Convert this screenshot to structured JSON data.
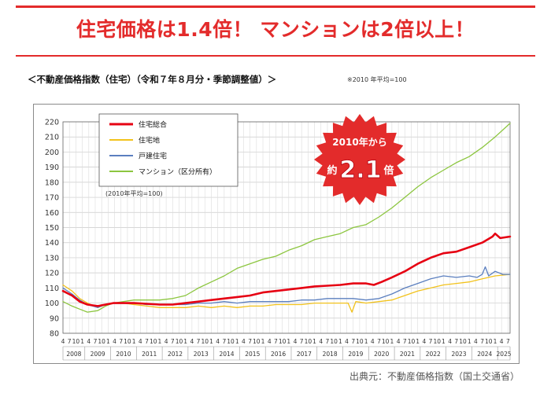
{
  "headline": "住宅価格は1.4倍！ マンションは2倍以上！",
  "subtitle": "＜不動産価格指数（住宅）（令和７年８月分・季節調整値）＞",
  "subnote": "※2010 年平均=100",
  "source": "出典元：不動産価格指数（国土交通省）",
  "badge": {
    "line1": "2010年から",
    "prefix": "約",
    "value": "2.1",
    "suffix": "倍",
    "color": "#e32b2b"
  },
  "colors": {
    "accent": "#e32b2b",
    "total": "#e60012",
    "land": "#f2c21b",
    "detached": "#5b7fbf",
    "condo": "#8cc63f"
  },
  "chart_data": {
    "type": "line",
    "title": "不動産価格指数（住宅）（令和７年８月分・季節調整値）",
    "xlabel": "",
    "ylabel": "",
    "base_note": "(2010年平均=100)",
    "ylim": [
      80,
      220
    ],
    "yticks": [
      80,
      90,
      100,
      110,
      120,
      130,
      140,
      150,
      160,
      170,
      180,
      190,
      200,
      210,
      220
    ],
    "years": [
      "2008",
      "2009",
      "2010",
      "2011",
      "2012",
      "2013",
      "2014",
      "2015",
      "2016",
      "2017",
      "2018",
      "2019",
      "2020",
      "2021",
      "2022",
      "2023",
      "2024",
      "2025"
    ],
    "month_ticks": [
      "4",
      "7",
      "10",
      "1"
    ],
    "last_year_month_ticks": [
      "4",
      "7"
    ],
    "x_start": 2008.25,
    "x_end": 2025.58,
    "legend": [
      "住宅総合",
      "住宅地",
      "戸建住宅",
      "マンション（区分所有）"
    ],
    "series": [
      {
        "name": "住宅総合",
        "key": "total",
        "points": [
          [
            2008.25,
            108
          ],
          [
            2008.6,
            105
          ],
          [
            2008.9,
            101
          ],
          [
            2009.2,
            99
          ],
          [
            2009.6,
            98
          ],
          [
            2009.9,
            99
          ],
          [
            2010.2,
            100
          ],
          [
            2010.6,
            100
          ],
          [
            2011.0,
            100
          ],
          [
            2011.5,
            99.5
          ],
          [
            2012.0,
            99
          ],
          [
            2012.5,
            99
          ],
          [
            2013.0,
            100
          ],
          [
            2013.5,
            101
          ],
          [
            2014.0,
            102
          ],
          [
            2014.5,
            103
          ],
          [
            2015.0,
            104
          ],
          [
            2015.5,
            105
          ],
          [
            2016.0,
            107
          ],
          [
            2016.5,
            108
          ],
          [
            2017.0,
            109
          ],
          [
            2017.5,
            110
          ],
          [
            2018.0,
            111
          ],
          [
            2018.5,
            111.5
          ],
          [
            2019.0,
            112
          ],
          [
            2019.5,
            113
          ],
          [
            2020.0,
            113
          ],
          [
            2020.3,
            112
          ],
          [
            2020.6,
            114
          ],
          [
            2021.0,
            117
          ],
          [
            2021.5,
            121
          ],
          [
            2022.0,
            126
          ],
          [
            2022.5,
            130
          ],
          [
            2023.0,
            133
          ],
          [
            2023.5,
            134
          ],
          [
            2024.0,
            137
          ],
          [
            2024.5,
            140
          ],
          [
            2024.9,
            144
          ],
          [
            2025.0,
            146
          ],
          [
            2025.2,
            143
          ],
          [
            2025.58,
            144
          ]
        ]
      },
      {
        "name": "住宅地",
        "key": "land",
        "points": [
          [
            2008.25,
            112
          ],
          [
            2008.6,
            108
          ],
          [
            2008.9,
            103
          ],
          [
            2009.2,
            100
          ],
          [
            2009.6,
            97
          ],
          [
            2009.9,
            99
          ],
          [
            2010.2,
            100
          ],
          [
            2010.6,
            100
          ],
          [
            2011.0,
            99
          ],
          [
            2011.5,
            98
          ],
          [
            2012.0,
            97
          ],
          [
            2012.5,
            97
          ],
          [
            2013.0,
            97
          ],
          [
            2013.5,
            98
          ],
          [
            2014.0,
            97
          ],
          [
            2014.5,
            98
          ],
          [
            2015.0,
            97
          ],
          [
            2015.5,
            98
          ],
          [
            2016.0,
            98
          ],
          [
            2016.5,
            99
          ],
          [
            2017.0,
            99
          ],
          [
            2017.5,
            99
          ],
          [
            2018.0,
            100
          ],
          [
            2018.5,
            100
          ],
          [
            2019.0,
            100
          ],
          [
            2019.3,
            100
          ],
          [
            2019.45,
            94
          ],
          [
            2019.6,
            101
          ],
          [
            2020.0,
            100
          ],
          [
            2020.5,
            101
          ],
          [
            2021.0,
            102
          ],
          [
            2021.5,
            105
          ],
          [
            2022.0,
            108
          ],
          [
            2022.5,
            110
          ],
          [
            2023.0,
            112
          ],
          [
            2023.5,
            113
          ],
          [
            2024.0,
            114
          ],
          [
            2024.5,
            116
          ],
          [
            2025.0,
            118
          ],
          [
            2025.58,
            119
          ]
        ]
      },
      {
        "name": "戸建住宅",
        "key": "detached",
        "points": [
          [
            2008.25,
            110
          ],
          [
            2008.6,
            106
          ],
          [
            2008.9,
            102
          ],
          [
            2009.2,
            99
          ],
          [
            2009.6,
            97
          ],
          [
            2009.9,
            99
          ],
          [
            2010.2,
            100
          ],
          [
            2010.6,
            100
          ],
          [
            2011.0,
            100
          ],
          [
            2011.5,
            99
          ],
          [
            2012.0,
            99
          ],
          [
            2012.5,
            99
          ],
          [
            2013.0,
            99
          ],
          [
            2013.5,
            100
          ],
          [
            2014.0,
            100
          ],
          [
            2014.5,
            101
          ],
          [
            2015.0,
            100
          ],
          [
            2015.5,
            101
          ],
          [
            2016.0,
            101
          ],
          [
            2016.5,
            101
          ],
          [
            2017.0,
            101
          ],
          [
            2017.5,
            102
          ],
          [
            2018.0,
            102
          ],
          [
            2018.5,
            103
          ],
          [
            2019.0,
            103
          ],
          [
            2019.5,
            103
          ],
          [
            2020.0,
            102
          ],
          [
            2020.5,
            103
          ],
          [
            2021.0,
            106
          ],
          [
            2021.5,
            110
          ],
          [
            2022.0,
            113
          ],
          [
            2022.5,
            116
          ],
          [
            2023.0,
            118
          ],
          [
            2023.5,
            117
          ],
          [
            2024.0,
            118
          ],
          [
            2024.3,
            117
          ],
          [
            2024.5,
            119
          ],
          [
            2024.62,
            124
          ],
          [
            2024.75,
            118
          ],
          [
            2025.0,
            121
          ],
          [
            2025.3,
            119
          ],
          [
            2025.58,
            119
          ]
        ]
      },
      {
        "name": "マンション（区分所有）",
        "key": "condo",
        "points": [
          [
            2008.25,
            101
          ],
          [
            2008.6,
            98
          ],
          [
            2008.9,
            96
          ],
          [
            2009.2,
            94
          ],
          [
            2009.6,
            95
          ],
          [
            2009.9,
            98
          ],
          [
            2010.2,
            100
          ],
          [
            2010.6,
            101
          ],
          [
            2011.0,
            102
          ],
          [
            2011.5,
            102
          ],
          [
            2012.0,
            102
          ],
          [
            2012.5,
            103
          ],
          [
            2013.0,
            105
          ],
          [
            2013.5,
            110
          ],
          [
            2014.0,
            114
          ],
          [
            2014.5,
            118
          ],
          [
            2015.0,
            123
          ],
          [
            2015.5,
            126
          ],
          [
            2016.0,
            129
          ],
          [
            2016.5,
            131
          ],
          [
            2017.0,
            135
          ],
          [
            2017.5,
            138
          ],
          [
            2018.0,
            142
          ],
          [
            2018.5,
            144
          ],
          [
            2019.0,
            146
          ],
          [
            2019.5,
            150
          ],
          [
            2020.0,
            152
          ],
          [
            2020.5,
            157
          ],
          [
            2021.0,
            163
          ],
          [
            2021.5,
            170
          ],
          [
            2022.0,
            177
          ],
          [
            2022.5,
            183
          ],
          [
            2023.0,
            188
          ],
          [
            2023.5,
            193
          ],
          [
            2024.0,
            197
          ],
          [
            2024.5,
            203
          ],
          [
            2025.0,
            210
          ],
          [
            2025.58,
            219
          ]
        ]
      }
    ]
  }
}
